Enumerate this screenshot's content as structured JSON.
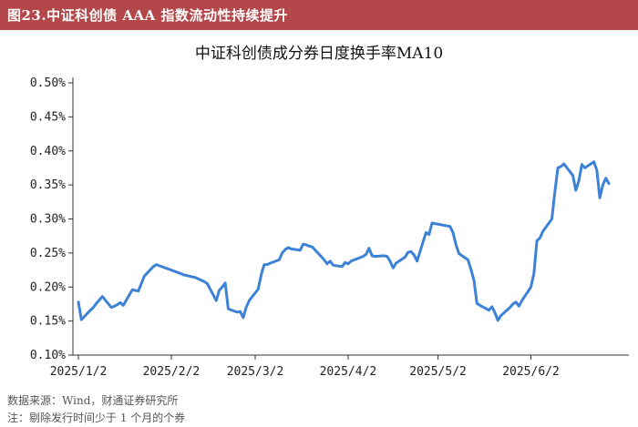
{
  "header": {
    "figure_title": "图23.中证科创债 AAA 指数流动性持续提升"
  },
  "footnotes": {
    "source": "数据来源：Wind，财通证券研究所",
    "note": "注：剔除发行时间少于 1 个月的个券"
  },
  "colors": {
    "banner": "#b4474a",
    "line": "#3d82d6"
  },
  "chart_data": {
    "type": "line",
    "title": "中证科创债成分券日度换手率MA10",
    "xlabel": "",
    "ylabel": "",
    "ylim": [
      0.1,
      0.5
    ],
    "y_ticks": [
      0.1,
      0.15,
      0.2,
      0.25,
      0.3,
      0.35,
      0.4,
      0.45,
      0.5
    ],
    "y_tick_labels": [
      "0.10%",
      "0.15%",
      "0.20%",
      "0.25%",
      "0.30%",
      "0.35%",
      "0.40%",
      "0.45%",
      "0.50%"
    ],
    "x_ticks": [
      "2025-01-02",
      "2025-02-02",
      "2025-03-02",
      "2025-04-02",
      "2025-05-02",
      "2025-06-02"
    ],
    "x_tick_labels": [
      "2025/1/2",
      "2025/2/2",
      "2025/3/2",
      "2025/4/2",
      "2025/5/2",
      "2025/6/2"
    ],
    "xlim": [
      "2025-01-02",
      "2025-06-28"
    ],
    "grid": false,
    "legend": "none",
    "series": [
      {
        "values_unit": "%",
        "points": [
          [
            "2025-01-02",
            0.178
          ],
          [
            "2025-01-03",
            0.152
          ],
          [
            "2025-01-06",
            0.166
          ],
          [
            "2025-01-07",
            0.17
          ],
          [
            "2025-01-08",
            0.176
          ],
          [
            "2025-01-09",
            0.181
          ],
          [
            "2025-01-10",
            0.186
          ],
          [
            "2025-01-13",
            0.17
          ],
          [
            "2025-01-14",
            0.172
          ],
          [
            "2025-01-15",
            0.174
          ],
          [
            "2025-01-16",
            0.177
          ],
          [
            "2025-01-17",
            0.173
          ],
          [
            "2025-01-20",
            0.196
          ],
          [
            "2025-01-21",
            0.195
          ],
          [
            "2025-01-22",
            0.194
          ],
          [
            "2025-01-23",
            0.205
          ],
          [
            "2025-01-24",
            0.216
          ],
          [
            "2025-01-27",
            0.23
          ],
          [
            "2025-01-28",
            0.233
          ],
          [
            "2025-02-05",
            0.22
          ],
          [
            "2025-02-06",
            0.218
          ],
          [
            "2025-02-07",
            0.217
          ],
          [
            "2025-02-10",
            0.214
          ],
          [
            "2025-02-11",
            0.212
          ],
          [
            "2025-02-12",
            0.21
          ],
          [
            "2025-02-13",
            0.208
          ],
          [
            "2025-02-14",
            0.205
          ],
          [
            "2025-02-17",
            0.18
          ],
          [
            "2025-02-18",
            0.195
          ],
          [
            "2025-02-19",
            0.2
          ],
          [
            "2025-02-20",
            0.206
          ],
          [
            "2025-02-21",
            0.168
          ],
          [
            "2025-02-24",
            0.163
          ],
          [
            "2025-02-25",
            0.164
          ],
          [
            "2025-02-26",
            0.155
          ],
          [
            "2025-02-27",
            0.17
          ],
          [
            "2025-02-28",
            0.18
          ],
          [
            "2025-03-03",
            0.197
          ],
          [
            "2025-03-04",
            0.218
          ],
          [
            "2025-03-05",
            0.233
          ],
          [
            "2025-03-06",
            0.233
          ],
          [
            "2025-03-07",
            0.235
          ],
          [
            "2025-03-10",
            0.24
          ],
          [
            "2025-03-11",
            0.25
          ],
          [
            "2025-03-12",
            0.255
          ],
          [
            "2025-03-13",
            0.258
          ],
          [
            "2025-03-14",
            0.256
          ],
          [
            "2025-03-17",
            0.254
          ],
          [
            "2025-03-18",
            0.263
          ],
          [
            "2025-03-19",
            0.262
          ],
          [
            "2025-03-20",
            0.26
          ],
          [
            "2025-03-21",
            0.259
          ],
          [
            "2025-03-24",
            0.245
          ],
          [
            "2025-03-25",
            0.24
          ],
          [
            "2025-03-26",
            0.234
          ],
          [
            "2025-03-27",
            0.238
          ],
          [
            "2025-03-28",
            0.232
          ],
          [
            "2025-03-31",
            0.23
          ],
          [
            "2025-04-01",
            0.236
          ],
          [
            "2025-04-02",
            0.234
          ],
          [
            "2025-04-03",
            0.238
          ],
          [
            "2025-04-07",
            0.245
          ],
          [
            "2025-04-08",
            0.248
          ],
          [
            "2025-04-09",
            0.257
          ],
          [
            "2025-04-10",
            0.246
          ],
          [
            "2025-04-11",
            0.245
          ],
          [
            "2025-04-14",
            0.246
          ],
          [
            "2025-04-15",
            0.245
          ],
          [
            "2025-04-16",
            0.238
          ],
          [
            "2025-04-17",
            0.228
          ],
          [
            "2025-04-18",
            0.235
          ],
          [
            "2025-04-21",
            0.244
          ],
          [
            "2025-04-22",
            0.251
          ],
          [
            "2025-04-23",
            0.252
          ],
          [
            "2025-04-24",
            0.247
          ],
          [
            "2025-04-25",
            0.238
          ],
          [
            "2025-04-28",
            0.28
          ],
          [
            "2025-04-29",
            0.277
          ],
          [
            "2025-04-30",
            0.294
          ],
          [
            "2025-05-06",
            0.289
          ],
          [
            "2025-05-07",
            0.28
          ],
          [
            "2025-05-08",
            0.262
          ],
          [
            "2025-05-09",
            0.249
          ],
          [
            "2025-05-12",
            0.24
          ],
          [
            "2025-05-13",
            0.226
          ],
          [
            "2025-05-14",
            0.21
          ],
          [
            "2025-05-15",
            0.176
          ],
          [
            "2025-05-16",
            0.173
          ],
          [
            "2025-05-19",
            0.166
          ],
          [
            "2025-05-20",
            0.171
          ],
          [
            "2025-05-21",
            0.162
          ],
          [
            "2025-05-22",
            0.151
          ],
          [
            "2025-05-23",
            0.158
          ],
          [
            "2025-05-26",
            0.17
          ],
          [
            "2025-05-27",
            0.175
          ],
          [
            "2025-05-28",
            0.178
          ],
          [
            "2025-05-29",
            0.172
          ],
          [
            "2025-05-30",
            0.18
          ],
          [
            "2025-06-02",
            0.2
          ],
          [
            "2025-06-03",
            0.22
          ],
          [
            "2025-06-04",
            0.268
          ],
          [
            "2025-06-05",
            0.272
          ],
          [
            "2025-06-06",
            0.282
          ],
          [
            "2025-06-09",
            0.3
          ],
          [
            "2025-06-10",
            0.34
          ],
          [
            "2025-06-11",
            0.375
          ],
          [
            "2025-06-12",
            0.377
          ],
          [
            "2025-06-13",
            0.381
          ],
          [
            "2025-06-16",
            0.364
          ],
          [
            "2025-06-17",
            0.342
          ],
          [
            "2025-06-18",
            0.356
          ],
          [
            "2025-06-19",
            0.38
          ],
          [
            "2025-06-20",
            0.375
          ],
          [
            "2025-06-23",
            0.384
          ],
          [
            "2025-06-24",
            0.372
          ],
          [
            "2025-06-25",
            0.331
          ],
          [
            "2025-06-26",
            0.35
          ],
          [
            "2025-06-27",
            0.36
          ],
          [
            "2025-06-28",
            0.352
          ]
        ]
      }
    ]
  }
}
